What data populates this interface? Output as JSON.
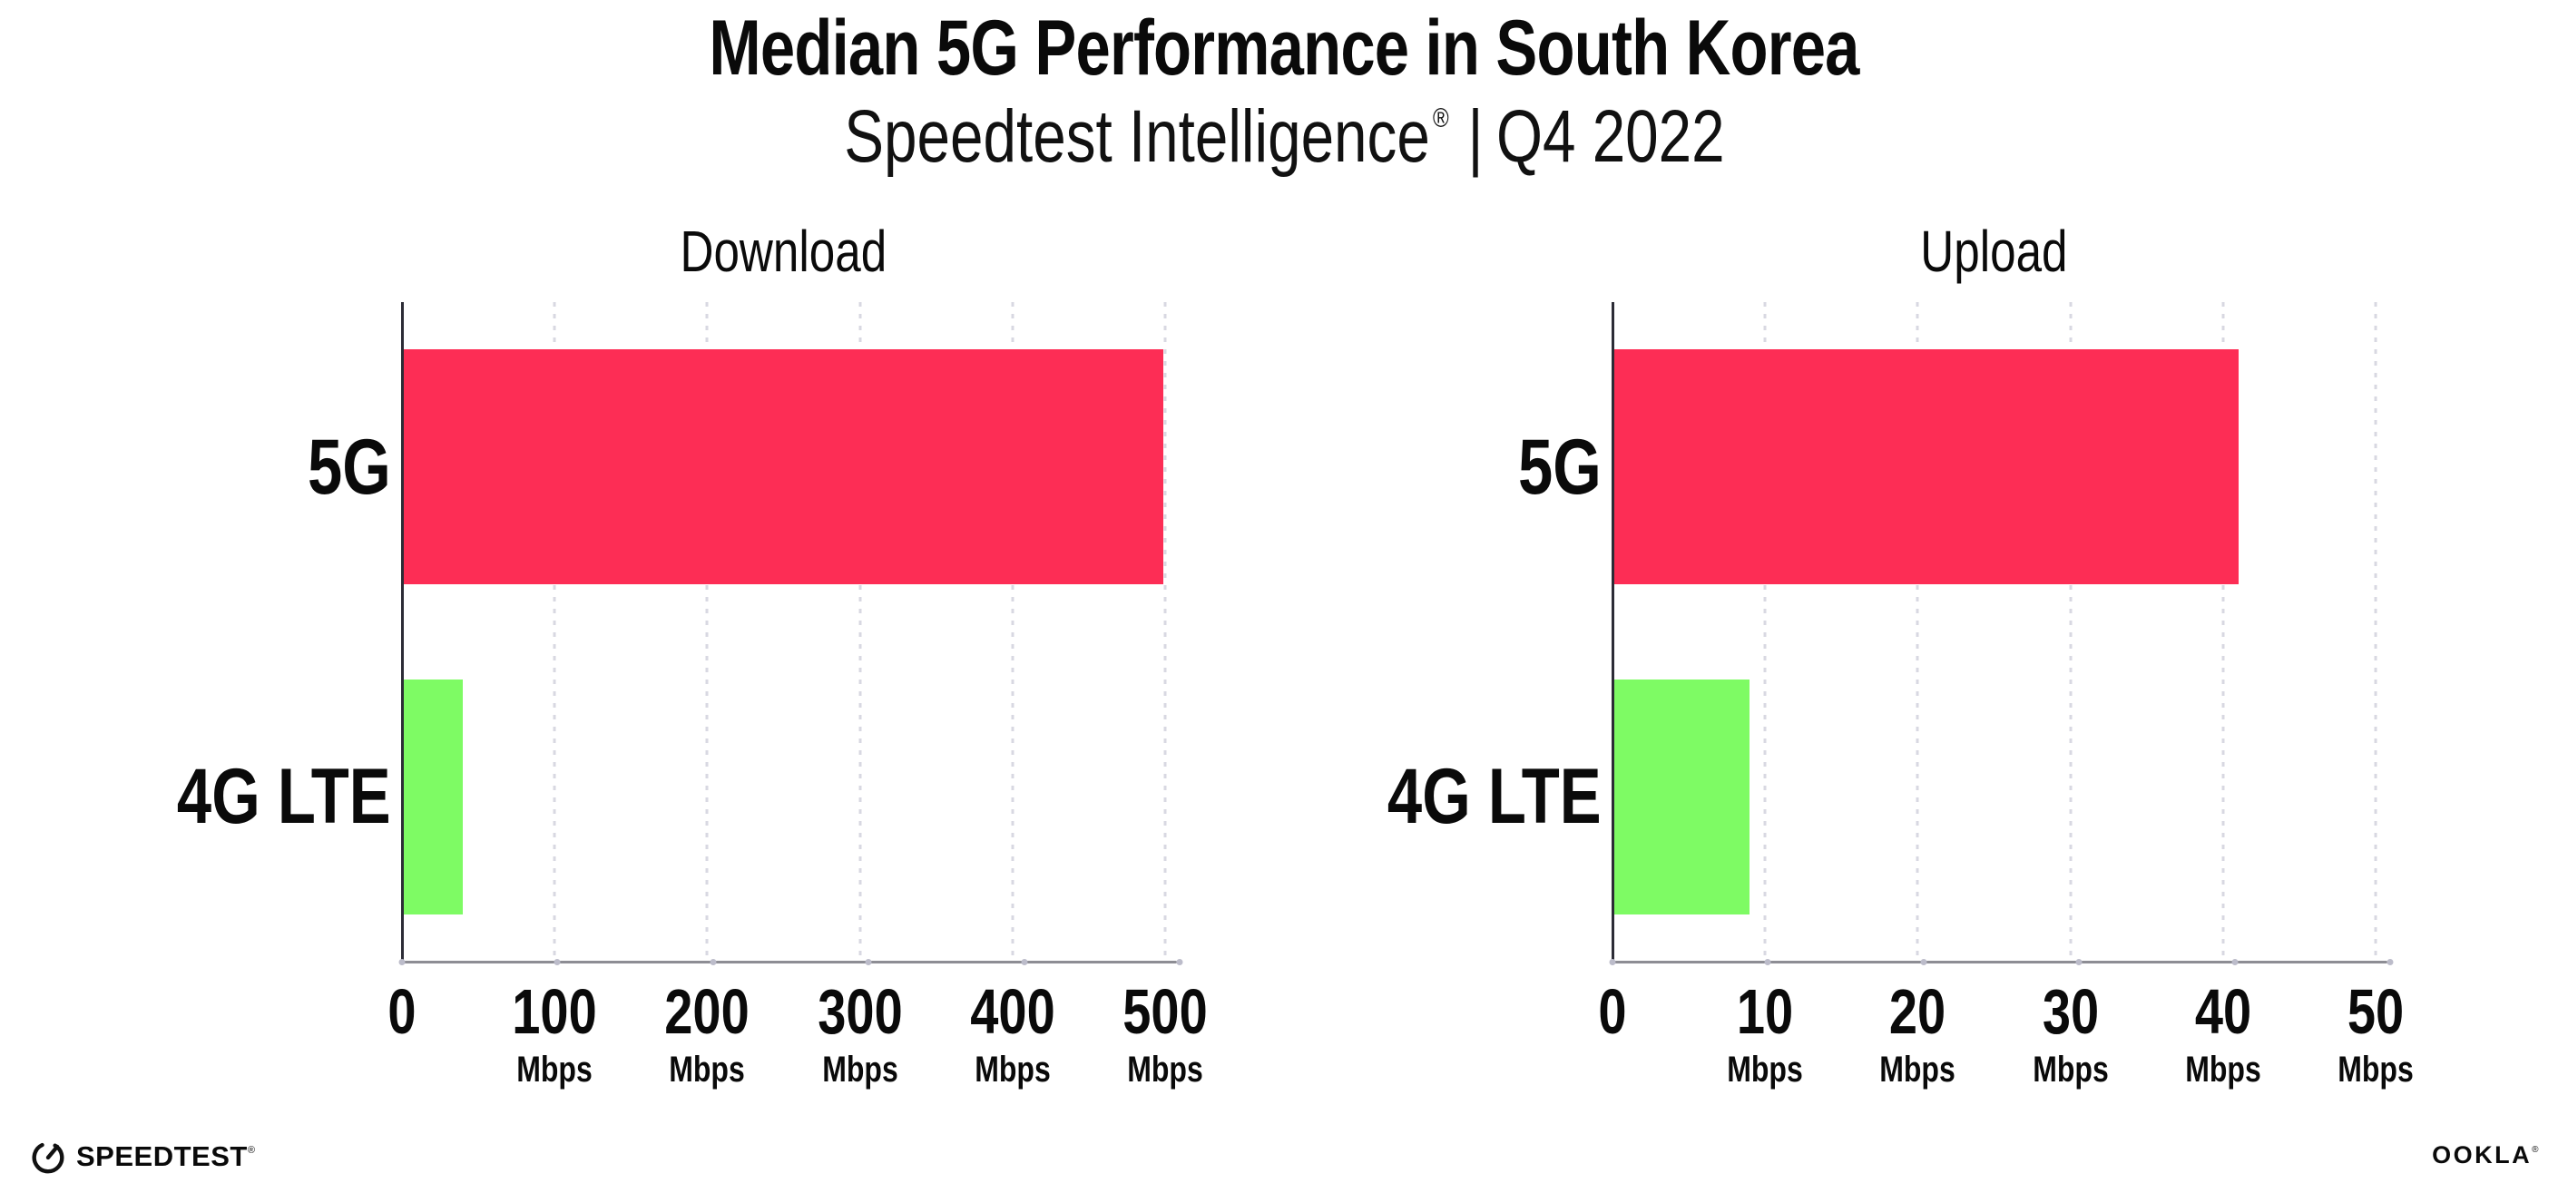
{
  "header": {
    "title": "Median 5G Performance in South Korea",
    "subtitle": {
      "brand": "Speedtest Intelligence",
      "reg_mark": "®",
      "separator": "|",
      "period": "Q4 2022"
    }
  },
  "chart_data": [
    {
      "type": "bar",
      "orientation": "horizontal",
      "title": "Download",
      "categories": [
        "5G",
        "4G LTE"
      ],
      "values": [
        499,
        40
      ],
      "unit": "Mbps",
      "xlim": [
        0,
        500
      ],
      "xticks": [
        0,
        100,
        200,
        300,
        400,
        500
      ],
      "xtick_unit_label": "Mbps",
      "bar_colors": [
        "#FD2D55",
        "#7EFB64"
      ],
      "grid": "vertical-dotted",
      "legend_position": "none"
    },
    {
      "type": "bar",
      "orientation": "horizontal",
      "title": "Upload",
      "categories": [
        "5G",
        "4G LTE"
      ],
      "values": [
        41,
        9
      ],
      "unit": "Mbps",
      "xlim": [
        0,
        50
      ],
      "xticks": [
        0,
        10,
        20,
        30,
        40,
        50
      ],
      "xtick_unit_label": "Mbps",
      "bar_colors": [
        "#FD2D55",
        "#7EFB64"
      ],
      "grid": "vertical-dotted",
      "legend_position": "none"
    }
  ],
  "colors": {
    "bar_5g": "#FD2D55",
    "bar_4g_lte": "#7EFB64",
    "y_axis_line": "#2c2c36",
    "x_axis_line": "#8d8d94",
    "gridline": "#d8d8e2",
    "text": "#0a0a0a",
    "background": "#ffffff"
  },
  "footer": {
    "speedtest_wordmark": "SPEEDTEST",
    "speedtest_reg": "®",
    "ookla_wordmark": "OOKLA",
    "ookla_reg": "®"
  }
}
